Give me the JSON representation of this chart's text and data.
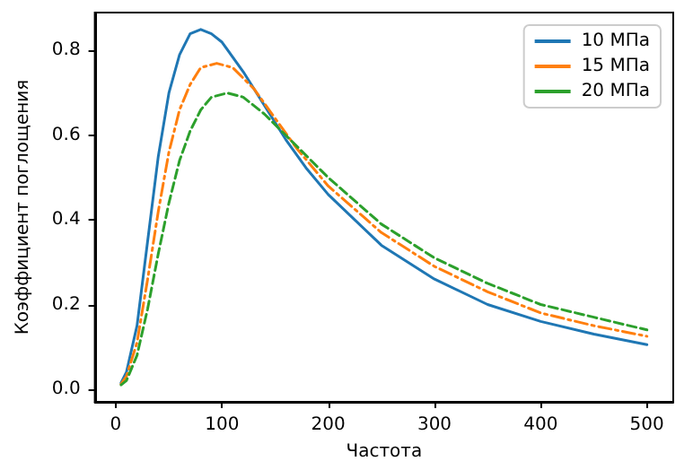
{
  "chart_data": {
    "type": "line",
    "xlabel": "Частота",
    "ylabel": "Коэффициент поглощения",
    "xlim": [
      -19.75,
      524.75
    ],
    "xticks": [
      0,
      100,
      200,
      300,
      400,
      500
    ],
    "ylim": [
      -0.03,
      0.89
    ],
    "yticks": [
      {
        "value": 0,
        "label": "0.0"
      },
      {
        "value": 0.2,
        "label": "0.2"
      },
      {
        "value": 0.4,
        "label": "0.4"
      },
      {
        "value": 0.6,
        "label": "0.6"
      },
      {
        "value": 0.8,
        "label": "0.8"
      }
    ],
    "grid": false,
    "legend": "top right",
    "marker": "none",
    "series": [
      {
        "name": "10 МПа",
        "color": "#1f77b4",
        "line_style": "solid",
        "x": [
          5,
          10,
          20,
          30,
          40,
          50,
          60,
          70,
          80,
          90,
          100,
          120,
          140,
          160,
          180,
          200,
          250,
          300,
          350,
          400,
          450,
          500
        ],
        "values": [
          0.015,
          0.04,
          0.15,
          0.35,
          0.55,
          0.7,
          0.79,
          0.84,
          0.85,
          0.84,
          0.82,
          0.75,
          0.67,
          0.59,
          0.52,
          0.46,
          0.34,
          0.26,
          0.2,
          0.16,
          0.13,
          0.105
        ]
      },
      {
        "name": "15 МПа",
        "color": "#ff7f0e",
        "line_style": "dashdot",
        "x": [
          5,
          10,
          20,
          30,
          40,
          50,
          60,
          70,
          80,
          95,
          110,
          130,
          150,
          170,
          200,
          250,
          300,
          350,
          400,
          450,
          500
        ],
        "values": [
          0.012,
          0.03,
          0.11,
          0.26,
          0.42,
          0.56,
          0.66,
          0.72,
          0.76,
          0.77,
          0.76,
          0.71,
          0.64,
          0.57,
          0.48,
          0.37,
          0.29,
          0.23,
          0.18,
          0.15,
          0.125
        ]
      },
      {
        "name": "20 МПа",
        "color": "#2ca02c",
        "line_style": "dashed",
        "x": [
          5,
          10,
          20,
          30,
          40,
          50,
          60,
          70,
          80,
          90,
          105,
          120,
          140,
          160,
          180,
          200,
          250,
          300,
          350,
          400,
          450,
          500
        ],
        "values": [
          0.01,
          0.02,
          0.08,
          0.19,
          0.32,
          0.44,
          0.54,
          0.61,
          0.66,
          0.69,
          0.7,
          0.69,
          0.65,
          0.6,
          0.55,
          0.5,
          0.39,
          0.31,
          0.25,
          0.2,
          0.17,
          0.14
        ]
      }
    ]
  }
}
